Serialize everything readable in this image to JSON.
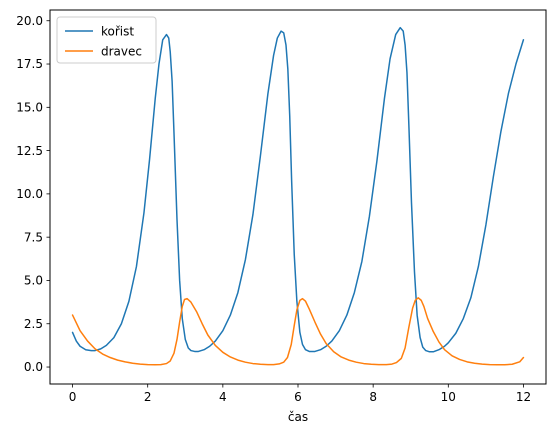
{
  "chart_data": {
    "type": "line",
    "title": "",
    "xlabel": "čas",
    "ylabel": "",
    "xlim": [
      -0.6,
      12.6
    ],
    "ylim": [
      -0.98,
      20.62
    ],
    "grid": false,
    "legend_position": "top-left",
    "x_ticks": [
      {
        "value": 0,
        "label": "0"
      },
      {
        "value": 2,
        "label": "2"
      },
      {
        "value": 4,
        "label": "4"
      },
      {
        "value": 6,
        "label": "6"
      },
      {
        "value": 8,
        "label": "8"
      },
      {
        "value": 10,
        "label": "10"
      },
      {
        "value": 12,
        "label": "12"
      }
    ],
    "y_ticks": [
      {
        "value": 0,
        "label": "0.0"
      },
      {
        "value": 2.5,
        "label": "2.5"
      },
      {
        "value": 5,
        "label": "5.0"
      },
      {
        "value": 7.5,
        "label": "7.5"
      },
      {
        "value": 10,
        "label": "10.0"
      },
      {
        "value": 12.5,
        "label": "12.5"
      },
      {
        "value": 15,
        "label": "15.0"
      },
      {
        "value": 17.5,
        "label": "17.5"
      },
      {
        "value": 20,
        "label": "20.0"
      }
    ],
    "series": [
      {
        "name": "kořist",
        "color": "#1f77b4",
        "x": [
          0,
          0.1,
          0.2,
          0.35,
          0.5,
          0.6,
          0.75,
          0.9,
          1.1,
          1.3,
          1.5,
          1.7,
          1.9,
          2.05,
          2.2,
          2.3,
          2.4,
          2.5,
          2.56,
          2.6,
          2.65,
          2.7,
          2.78,
          2.85,
          2.92,
          3.0,
          3.08,
          3.15,
          3.25,
          3.35,
          3.5,
          3.65,
          3.8,
          4.0,
          4.2,
          4.4,
          4.6,
          4.8,
          5.0,
          5.2,
          5.35,
          5.45,
          5.55,
          5.62,
          5.68,
          5.73,
          5.78,
          5.83,
          5.9,
          5.97,
          6.05,
          6.12,
          6.2,
          6.3,
          6.45,
          6.6,
          6.75,
          6.9,
          7.1,
          7.3,
          7.5,
          7.7,
          7.9,
          8.1,
          8.3,
          8.45,
          8.6,
          8.72,
          8.8,
          8.85,
          8.9,
          8.95,
          9.02,
          9.1,
          9.17,
          9.25,
          9.32,
          9.4,
          9.5,
          9.6,
          9.75,
          9.9,
          10.0,
          10.2,
          10.4,
          10.6,
          10.8,
          11.0,
          11.2,
          11.4,
          11.6,
          11.8,
          12.0
        ],
        "values": [
          2.0,
          1.5,
          1.2,
          1.0,
          0.95,
          0.95,
          1.05,
          1.25,
          1.7,
          2.5,
          3.8,
          5.8,
          8.9,
          12.0,
          15.5,
          17.5,
          18.9,
          19.2,
          19.0,
          18.2,
          16.5,
          13.5,
          8.5,
          5.0,
          2.8,
          1.6,
          1.1,
          0.95,
          0.9,
          0.9,
          1.0,
          1.2,
          1.5,
          2.1,
          3.0,
          4.3,
          6.2,
          8.8,
          12.2,
          15.8,
          18.0,
          19.0,
          19.4,
          19.3,
          18.6,
          17.2,
          14.5,
          10.8,
          6.5,
          3.8,
          2.0,
          1.3,
          1.0,
          0.9,
          0.9,
          1.0,
          1.2,
          1.5,
          2.1,
          3.0,
          4.3,
          6.1,
          8.7,
          11.9,
          15.5,
          17.8,
          19.2,
          19.6,
          19.4,
          18.6,
          17.0,
          14.0,
          9.5,
          5.5,
          3.0,
          1.7,
          1.15,
          0.95,
          0.88,
          0.88,
          1.0,
          1.2,
          1.4,
          1.95,
          2.8,
          4.0,
          5.8,
          8.2,
          11.0,
          13.6,
          15.8,
          17.5,
          18.9
        ]
      },
      {
        "name": "dravec",
        "color": "#ff7f0e",
        "x": [
          0,
          0.2,
          0.4,
          0.6,
          0.8,
          1.0,
          1.2,
          1.4,
          1.6,
          1.8,
          2.0,
          2.2,
          2.35,
          2.5,
          2.6,
          2.7,
          2.78,
          2.85,
          2.92,
          2.98,
          3.05,
          3.15,
          3.3,
          3.45,
          3.6,
          3.8,
          4.0,
          4.2,
          4.4,
          4.6,
          4.8,
          5.0,
          5.2,
          5.35,
          5.5,
          5.62,
          5.72,
          5.82,
          5.9,
          5.97,
          6.05,
          6.12,
          6.2,
          6.3,
          6.45,
          6.6,
          6.75,
          6.95,
          7.15,
          7.35,
          7.55,
          7.75,
          7.95,
          8.15,
          8.35,
          8.5,
          8.62,
          8.75,
          8.85,
          8.95,
          9.05,
          9.12,
          9.2,
          9.28,
          9.35,
          9.45,
          9.6,
          9.75,
          9.9,
          10.1,
          10.3,
          10.5,
          10.7,
          10.9,
          11.1,
          11.3,
          11.5,
          11.7,
          11.9,
          12.0
        ],
        "values": [
          3.0,
          2.1,
          1.5,
          1.05,
          0.75,
          0.55,
          0.4,
          0.3,
          0.22,
          0.17,
          0.14,
          0.13,
          0.14,
          0.2,
          0.35,
          0.8,
          1.6,
          2.6,
          3.5,
          3.9,
          3.95,
          3.75,
          3.2,
          2.5,
          1.85,
          1.25,
          0.85,
          0.58,
          0.4,
          0.28,
          0.2,
          0.16,
          0.14,
          0.14,
          0.18,
          0.28,
          0.55,
          1.3,
          2.4,
          3.3,
          3.85,
          3.95,
          3.8,
          3.35,
          2.6,
          1.9,
          1.35,
          0.88,
          0.58,
          0.4,
          0.28,
          0.2,
          0.16,
          0.14,
          0.14,
          0.17,
          0.26,
          0.5,
          1.1,
          2.3,
          3.4,
          3.85,
          4.0,
          3.85,
          3.5,
          2.8,
          2.05,
          1.45,
          1.0,
          0.65,
          0.44,
          0.3,
          0.22,
          0.17,
          0.14,
          0.13,
          0.13,
          0.16,
          0.3,
          0.55
        ]
      }
    ]
  }
}
